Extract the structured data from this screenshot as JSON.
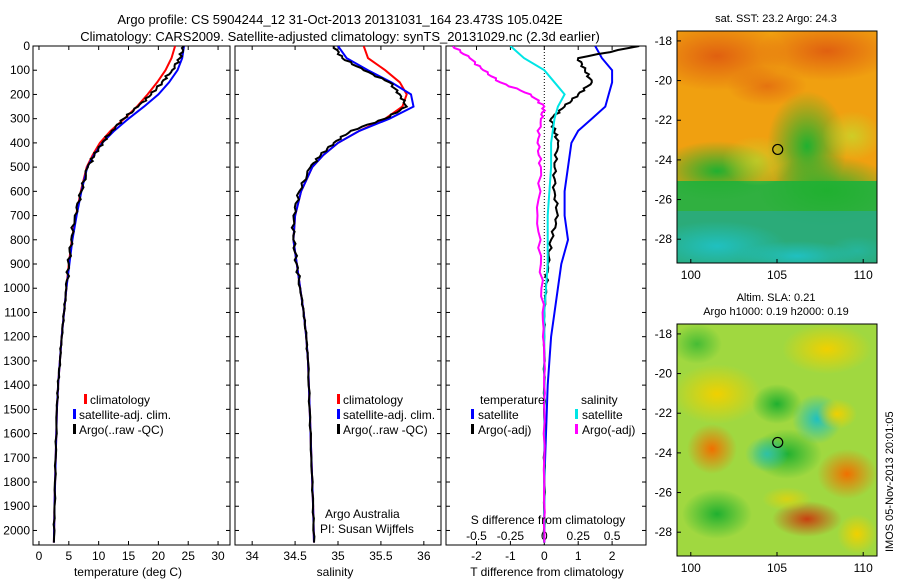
{
  "title": {
    "line1": "Argo profile: CS 5904244_12 31-Oct-2013 20131031_164 23.473S 105.042E",
    "line2": "Climatology: CARS2009. Satellite-adjusted climatology: synTS_20131029.nc (2.3d earlier)"
  },
  "credit": {
    "line1": "Argo Australia",
    "line2": "PI: Susan Wijffels"
  },
  "timestamp": "IMOS 05-Nov-2013 20:01:05",
  "map_titles": {
    "top": "sat. SST: 23.2 Argo: 24.3",
    "bottom_line1": "Altim. SLA: 0.21",
    "bottom_line2": "Argo h1000: 0.19 h2000: 0.19"
  },
  "colors": {
    "climatology": "#ff0000",
    "satellite": "#0000ff",
    "argo": "#000000",
    "salinity_satellite": "#00e5e5",
    "salinity_argo": "#ff00ff"
  },
  "chart_data": [
    {
      "type": "line",
      "name": "temperature-profile",
      "xlabel": "temperature (deg C)",
      "ylabel": "",
      "xlim": [
        -1,
        32
      ],
      "ylim": [
        2060,
        0
      ],
      "xticks": [
        0,
        5,
        10,
        15,
        20,
        25,
        30
      ],
      "yticks": [
        0,
        100,
        200,
        300,
        400,
        500,
        600,
        700,
        800,
        900,
        1000,
        1100,
        1200,
        1300,
        1400,
        1500,
        1600,
        1700,
        1800,
        1900,
        2000
      ],
      "legend": [
        "climatology",
        "satellite-adj. clim.",
        "Argo(..raw -QC)"
      ],
      "legend_position": "bottom-center",
      "series": [
        {
          "name": "climatology",
          "color": "#ff0000",
          "x": [
            22.8,
            22.2,
            21.2,
            19.8,
            18.2,
            16.4,
            14.3,
            12.0,
            10.2,
            9.0,
            8.0,
            7.0,
            6.2,
            5.5,
            5.0,
            4.6,
            4.2,
            3.8,
            3.5,
            3.2,
            3.0,
            2.8,
            2.6,
            2.5
          ],
          "y": [
            0,
            50,
            100,
            150,
            200,
            250,
            300,
            350,
            400,
            450,
            500,
            600,
            700,
            800,
            900,
            1000,
            1100,
            1200,
            1300,
            1400,
            1500,
            1700,
            1900,
            2050
          ]
        },
        {
          "name": "satellite-adj. clim.",
          "color": "#0000ff",
          "x": [
            24.3,
            24.0,
            23.2,
            21.8,
            20.0,
            17.6,
            15.0,
            12.6,
            10.6,
            9.2,
            8.1,
            7.1,
            6.3,
            5.6,
            5.1,
            4.6,
            4.2,
            3.8,
            3.5,
            3.2,
            3.0,
            2.8,
            2.6,
            2.5
          ],
          "y": [
            0,
            50,
            100,
            150,
            200,
            250,
            300,
            350,
            400,
            450,
            500,
            600,
            700,
            800,
            900,
            1000,
            1100,
            1200,
            1300,
            1400,
            1500,
            1700,
            1900,
            2050
          ]
        },
        {
          "name": "Argo(..raw -QC)",
          "color": "#000000",
          "x": [
            24.3,
            23.6,
            22.3,
            20.6,
            18.8,
            16.6,
            14.2,
            12.2,
            10.6,
            9.3,
            8.2,
            7.1,
            6.0,
            5.4,
            5.0,
            4.6,
            4.2,
            3.8,
            3.5,
            3.2,
            3.0,
            2.8,
            2.6,
            2.5
          ],
          "y": [
            0,
            50,
            100,
            150,
            200,
            250,
            300,
            350,
            400,
            450,
            500,
            600,
            700,
            800,
            900,
            1000,
            1100,
            1200,
            1300,
            1400,
            1500,
            1700,
            1900,
            2050
          ]
        }
      ]
    },
    {
      "type": "line",
      "name": "salinity-profile",
      "xlabel": "salinity",
      "ylabel": "",
      "xlim": [
        33.8,
        36.2
      ],
      "ylim": [
        2060,
        0
      ],
      "xticks": [
        34,
        34.5,
        35,
        35.5,
        36
      ],
      "legend": [
        "climatology",
        "satellite-adj. clim.",
        "Argo(..raw -QC)"
      ],
      "legend_position": "bottom-right",
      "series": [
        {
          "name": "climatology",
          "color": "#ff0000",
          "x": [
            35.3,
            35.35,
            35.55,
            35.72,
            35.8,
            35.75,
            35.55,
            35.25,
            35.0,
            34.83,
            34.7,
            34.57,
            34.5,
            34.48,
            34.52,
            34.56,
            34.6,
            34.63,
            34.65,
            34.67,
            34.69,
            34.71,
            34.72
          ],
          "y": [
            0,
            50,
            100,
            150,
            200,
            250,
            300,
            350,
            400,
            450,
            500,
            600,
            700,
            800,
            900,
            1000,
            1100,
            1200,
            1300,
            1500,
            1700,
            1900,
            2050
          ]
        },
        {
          "name": "satellite-adj. clim.",
          "color": "#0000ff",
          "x": [
            35.0,
            35.1,
            35.35,
            35.62,
            35.85,
            35.88,
            35.6,
            35.25,
            35.0,
            34.83,
            34.7,
            34.57,
            34.5,
            34.48,
            34.52,
            34.56,
            34.6,
            34.63,
            34.65,
            34.67,
            34.69,
            34.71,
            34.72
          ],
          "y": [
            0,
            50,
            100,
            150,
            200,
            250,
            300,
            350,
            400,
            450,
            500,
            600,
            700,
            800,
            900,
            1000,
            1100,
            1200,
            1300,
            1500,
            1700,
            1900,
            2050
          ]
        },
        {
          "name": "Argo(..raw -QC)",
          "color": "#000000",
          "x": [
            34.95,
            35.05,
            35.3,
            35.6,
            35.72,
            35.8,
            35.55,
            35.15,
            34.95,
            34.8,
            34.68,
            34.55,
            34.48,
            34.48,
            34.52,
            34.56,
            34.6,
            34.63,
            34.65,
            34.67,
            34.69,
            34.71,
            34.72
          ],
          "y": [
            0,
            50,
            100,
            150,
            200,
            250,
            300,
            350,
            400,
            450,
            500,
            600,
            700,
            800,
            900,
            1000,
            1100,
            1200,
            1300,
            1500,
            1700,
            1900,
            2050
          ]
        }
      ]
    },
    {
      "type": "line",
      "name": "difference-profile",
      "xlabel": "T difference from climatology",
      "xlabel2": "S difference from climatology",
      "ylabel": "",
      "xlim": [
        -2.9,
        3.0
      ],
      "ylim": [
        2060,
        0
      ],
      "xticks": [
        -2,
        -1,
        0,
        1,
        2
      ],
      "xticks_salinity": [
        "-0.5",
        "-0.25",
        "0",
        "0.25",
        "0.5"
      ],
      "legend_temperature_title": "temperature",
      "legend_salinity_title": "salinity",
      "legend": [
        "satellite",
        "Argo(-adj)",
        "satellite",
        "Argo(-adj)"
      ],
      "legend_position": "bottom-center",
      "series": [
        {
          "name": "temperature satellite",
          "color": "#0000ff",
          "x": [
            1.5,
            1.7,
            2.0,
            2.0,
            1.9,
            1.8,
            1.4,
            1.0,
            0.8,
            0.7,
            0.6,
            0.6,
            0.7,
            0.5,
            0.4,
            0.3,
            0.2,
            0.1,
            0.05,
            0.0,
            0.0
          ],
          "y": [
            0,
            50,
            100,
            150,
            200,
            250,
            300,
            350,
            400,
            500,
            600,
            700,
            800,
            900,
            1000,
            1100,
            1200,
            1400,
            1600,
            1800,
            2050
          ]
        },
        {
          "name": "temperature Argo(-adj)",
          "color": "#000000",
          "x": [
            2.8,
            1.0,
            1.2,
            1.4,
            1.0,
            0.6,
            0.2,
            0.3,
            0.4,
            0.3,
            0.3,
            0.4,
            0.2,
            0.1,
            0.05,
            0.0,
            0.0,
            0.0,
            0.0,
            0.0,
            0.0
          ],
          "y": [
            0,
            50,
            100,
            150,
            200,
            250,
            300,
            350,
            400,
            500,
            600,
            700,
            800,
            900,
            1000,
            1100,
            1200,
            1400,
            1600,
            1800,
            2050
          ]
        },
        {
          "name": "salinity satellite",
          "color": "#00e5e5",
          "x": [
            -1.0,
            -0.6,
            0.0,
            0.3,
            0.6,
            0.4,
            0.3,
            0.2,
            0.2,
            0.1,
            0.1,
            0.0,
            0.0,
            0.0,
            0.0,
            0.0
          ],
          "y": [
            0,
            50,
            100,
            150,
            200,
            250,
            300,
            400,
            500,
            700,
            900,
            1100,
            1300,
            1500,
            1800,
            2050
          ]
        },
        {
          "name": "salinity Argo(-adj)",
          "color": "#ff00ff",
          "x": [
            -2.7,
            -2.2,
            -1.8,
            -1.3,
            -0.4,
            0.0,
            -0.1,
            -0.2,
            -0.1,
            -0.2,
            -0.1,
            -0.05,
            0.0,
            0.0,
            0.0,
            0.0
          ],
          "y": [
            0,
            50,
            100,
            150,
            200,
            250,
            300,
            400,
            500,
            700,
            900,
            1100,
            1300,
            1500,
            1800,
            2050
          ]
        }
      ]
    },
    {
      "type": "heatmap",
      "name": "sst-map",
      "title": "sat. SST: 23.2 Argo: 24.3",
      "xlim": [
        99.2,
        110.8
      ],
      "ylim": [
        -29.2,
        -17.5
      ],
      "xticks": [
        100,
        105,
        110
      ],
      "yticks": [
        -18,
        -20,
        -22,
        -24,
        -26,
        -28
      ],
      "marker": {
        "lon": 105.042,
        "lat": -23.473
      }
    },
    {
      "type": "heatmap",
      "name": "sla-map",
      "title": "Altim. SLA: 0.21",
      "xlim": [
        99.2,
        110.8
      ],
      "ylim": [
        -29.2,
        -17.5
      ],
      "xticks": [
        100,
        105,
        110
      ],
      "yticks": [
        -18,
        -20,
        -22,
        -24,
        -26,
        -28
      ],
      "marker": {
        "lon": 105.042,
        "lat": -23.473
      }
    }
  ]
}
